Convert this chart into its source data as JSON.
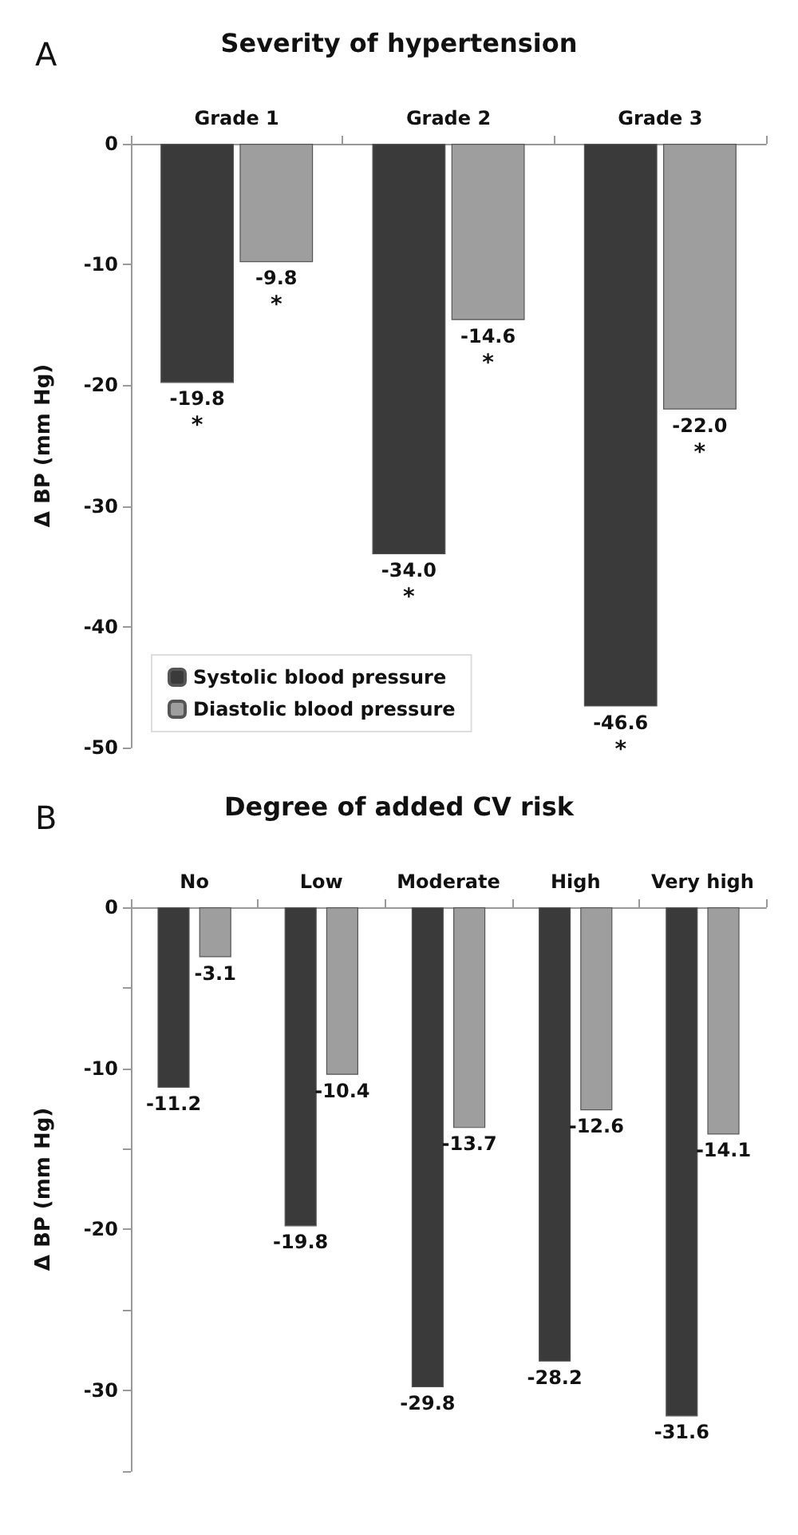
{
  "chart_data": [
    {
      "type": "bar",
      "title": "Severity of hypertension",
      "ylabel": "Δ BP (mm Hg)",
      "categories": [
        "Grade 1",
        "Grade 2",
        "Grade 3"
      ],
      "series": [
        {
          "name": "Systolic blood pressure",
          "color": "#3a3a3a",
          "values": [
            -19.8,
            -34.0,
            -46.6
          ],
          "value_labels": [
            "-19.8",
            "-34.0",
            "-46.6"
          ]
        },
        {
          "name": "Diastolic blood pressure",
          "color": "#9e9e9e",
          "values": [
            -9.8,
            -14.6,
            -22.0
          ],
          "value_labels": [
            "-9.8",
            "-14.6",
            "-22.0"
          ]
        }
      ],
      "ylim": [
        -50,
        0
      ],
      "yticks": [
        0,
        -10,
        -20,
        -30,
        -40,
        -50
      ],
      "legend": "bottom left",
      "grid": false,
      "annotations": [
        "A",
        {
          "text": "*",
          "x": "Grade 1",
          "y": -19.8
        },
        {
          "text": "*",
          "x": "Grade 1",
          "y": -9.8
        },
        {
          "text": "*",
          "x": "Grade 2",
          "y": -34.0
        },
        {
          "text": "*",
          "x": "Grade 2",
          "y": -14.6
        },
        {
          "text": "*",
          "x": "Grade 3",
          "y": -46.6
        },
        {
          "text": "*",
          "x": "Grade 3",
          "y": -22.0
        }
      ]
    },
    {
      "type": "bar",
      "title": "Degree of added CV risk",
      "ylabel": "Δ BP (mm Hg)",
      "categories": [
        "No",
        "Low",
        "Moderate",
        "High",
        "Very high"
      ],
      "series": [
        {
          "color": "#3a3a3a",
          "values": [
            -11.2,
            -19.8,
            -29.8,
            -28.2,
            -31.6
          ]
        },
        {
          "color": "#9e9e9e",
          "values": [
            -3.1,
            -10.4,
            -13.7,
            -12.6,
            -14.1
          ]
        }
      ],
      "ylim": [
        -35,
        0
      ],
      "yticks": [
        0,
        {
          "value": -5,
          "label": null
        },
        -10,
        {
          "value": -15,
          "label": null
        },
        -20,
        {
          "value": -25,
          "label": null
        },
        -30,
        {
          "value": -35,
          "label": null
        }
      ],
      "data_labels": true,
      "grid": false,
      "annotations": [
        "B"
      ]
    }
  ]
}
